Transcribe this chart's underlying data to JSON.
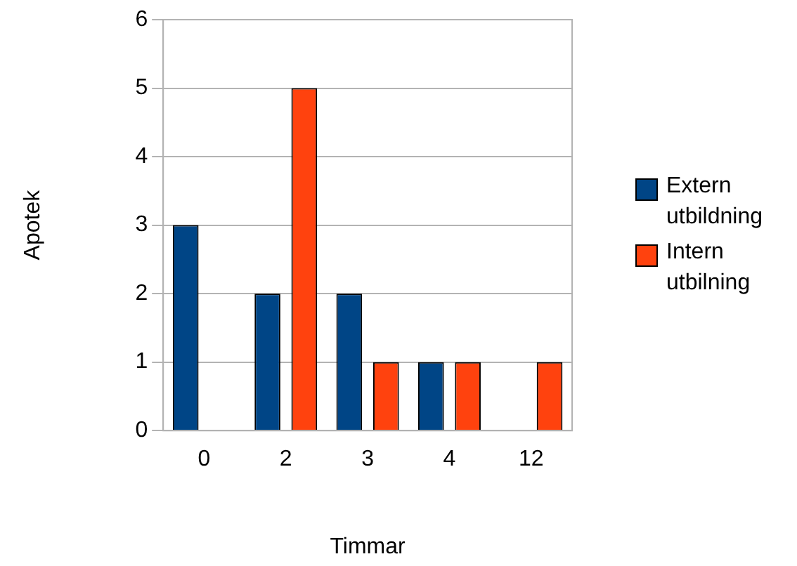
{
  "chart_data": {
    "type": "bar",
    "xlabel": "Timmar",
    "ylabel": "Apotek",
    "categories": [
      "0",
      "2",
      "3",
      "4",
      "12"
    ],
    "series": [
      {
        "name": "Extern utbildning",
        "color": "#004586",
        "values": [
          3,
          2,
          2,
          1,
          0
        ]
      },
      {
        "name": "Intern utbilning",
        "color": "#ff420e",
        "values": [
          0,
          5,
          1,
          1,
          1
        ]
      }
    ],
    "ylim": [
      0,
      6
    ],
    "yticks": [
      0,
      1,
      2,
      3,
      4,
      5,
      6
    ],
    "grid": "y",
    "legend": "right"
  }
}
